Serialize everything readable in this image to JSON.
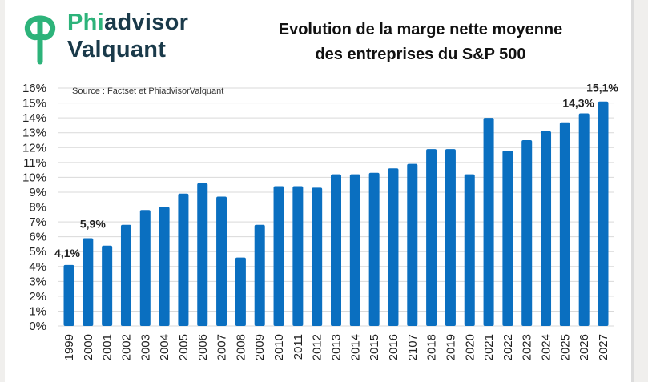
{
  "logo": {
    "line1": "Phiadvisor",
    "line2": "Valquant",
    "color_primary": "#1a3a4a",
    "color_accent": "#2db37a"
  },
  "colors": {
    "bar": "#0a6fc0",
    "grid": "#d9d9d9"
  },
  "chart_data": {
    "type": "bar",
    "title": "Evolution de la marge nette moyenne des entreprises du  S&P 500",
    "title_lines": [
      "Evolution de la marge nette moyenne",
      "des entreprises du  S&P 500"
    ],
    "source": "Source : Factset et PhiadvisorValquant",
    "xlabel": "",
    "ylabel": "",
    "categories": [
      "1999",
      "2000",
      "2001",
      "2002",
      "2003",
      "2004",
      "2005",
      "2006",
      "2007",
      "2008",
      "2009",
      "2010",
      "2011",
      "2012",
      "2013",
      "2014",
      "2015",
      "2016",
      "2107",
      "2018",
      "2019",
      "2020",
      "2021",
      "2022",
      "2023",
      "2024",
      "2025",
      "2026",
      "2027"
    ],
    "values": [
      4.1,
      5.9,
      5.4,
      6.8,
      7.8,
      8.0,
      8.9,
      9.6,
      8.7,
      4.6,
      6.8,
      9.4,
      9.4,
      9.3,
      10.2,
      10.2,
      10.3,
      10.6,
      10.9,
      11.9,
      11.9,
      10.2,
      14.0,
      11.8,
      12.5,
      13.1,
      13.7,
      14.3,
      15.1
    ],
    "ylim": [
      0,
      16
    ],
    "yticks": [
      "0%",
      "1%",
      "2%",
      "3%",
      "4%",
      "5%",
      "6%",
      "7%",
      "8%",
      "9%",
      "10%",
      "11%",
      "12%",
      "13%",
      "14%",
      "15%",
      "16%"
    ],
    "data_labels": [
      {
        "index": 0,
        "text": "4,1%"
      },
      {
        "index": 1,
        "text": "5,9%"
      },
      {
        "index": 27,
        "text": "14,3%"
      },
      {
        "index": 28,
        "text": "15,1%"
      }
    ],
    "grid": true,
    "legend": "none"
  }
}
